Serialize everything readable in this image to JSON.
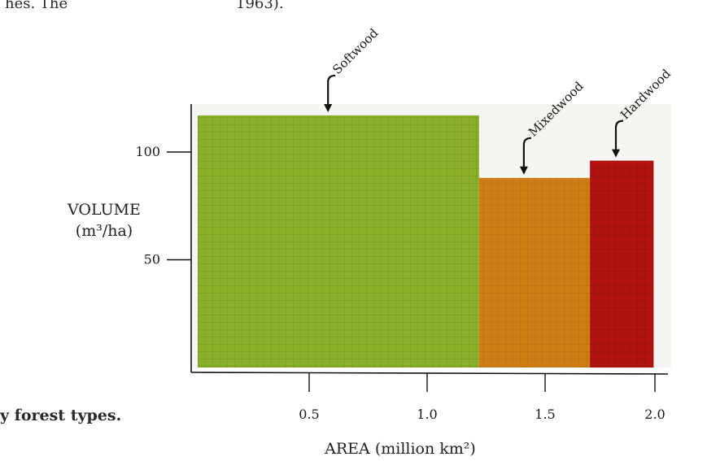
{
  "page_fragments": {
    "left_text": "hes. The",
    "top_text": "1963).",
    "caption_fragment": "y forest types."
  },
  "chart_data": {
    "type": "bar",
    "variable_width": true,
    "xlabel": "AREA (million km²)",
    "ylabel": "VOLUME (m³/ha)",
    "ylabel_lines": [
      "VOLUME",
      "(m³/ha)"
    ],
    "xlim": [
      0,
      2.0
    ],
    "ylim": [
      0,
      120
    ],
    "x_ticks": [
      0.5,
      1.0,
      1.5,
      2.0
    ],
    "x_tick_labels": [
      "0.5",
      "1.0",
      "1.5",
      "2.0"
    ],
    "y_ticks": [
      50,
      100
    ],
    "y_tick_labels": [
      "50",
      "100"
    ],
    "grid": false,
    "bars": [
      {
        "name": "Softwood",
        "x_start": 0.0,
        "x_end": 1.22,
        "value": 117,
        "color": "#8ab02a",
        "grid_color": "#6f9420",
        "arrow_x": 0.58
      },
      {
        "name": "Mixedwood",
        "x_start": 1.22,
        "x_end": 1.69,
        "value": 88,
        "color": "#cc7e14",
        "grid_color": "#b06c10",
        "arrow_x": 1.41
      },
      {
        "name": "Hardwood",
        "x_start": 1.69,
        "x_end": 1.96,
        "value": 96,
        "color": "#b3130f",
        "grid_color": "#8f0f0c",
        "arrow_x": 1.8
      }
    ]
  }
}
